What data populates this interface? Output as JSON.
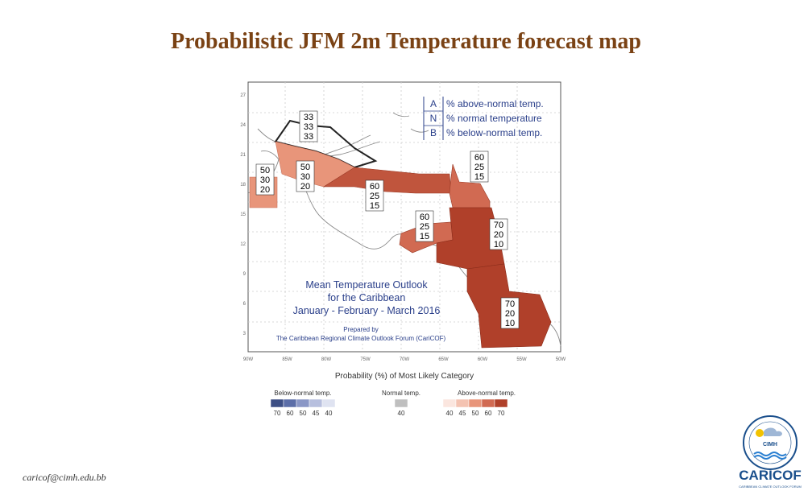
{
  "slide": {
    "title": "Probabilistic JFM 2m Temperature forecast map",
    "footer_email": "caricof@cimh.edu.bb"
  },
  "map": {
    "title_lines": [
      "Mean Temperature Outlook",
      "for the Caribbean",
      "January - February - March 2016"
    ],
    "prepared_lines": [
      "Prepared by",
      "The Caribbean Regional Climate Outlook Forum (CariCOF)"
    ],
    "lat_labels": [
      "27",
      "24",
      "21",
      "18",
      "15",
      "12",
      "9",
      "6",
      "3"
    ],
    "lon_labels": [
      "90W",
      "85W",
      "80W",
      "75W",
      "70W",
      "65W",
      "60W",
      "55W",
      "50W"
    ],
    "key": [
      {
        "letter": "A",
        "text": "% above-normal temp."
      },
      {
        "letter": "N",
        "text": "% normal temperature"
      },
      {
        "letter": "B",
        "text": "% below-normal temp."
      }
    ],
    "regions": [
      {
        "id": "bahamas",
        "values": [
          "33",
          "33",
          "33"
        ],
        "color": "none"
      },
      {
        "id": "belize",
        "values": [
          "50",
          "30",
          "20"
        ],
        "color": "#e8957a"
      },
      {
        "id": "cuba",
        "values": [
          "50",
          "30",
          "20"
        ],
        "color": "#e8957a"
      },
      {
        "id": "greater-antilles",
        "values": [
          "60",
          "25",
          "15"
        ],
        "color": "#d16a52"
      },
      {
        "id": "lesser-antilles",
        "values": [
          "60",
          "25",
          "15"
        ],
        "color": "#d16a52"
      },
      {
        "id": "abc-islands",
        "values": [
          "60",
          "25",
          "15"
        ],
        "color": "#d16a52"
      },
      {
        "id": "trinidad",
        "values": [
          "70",
          "20",
          "10"
        ],
        "color": "#b0402a"
      },
      {
        "id": "guianas",
        "values": [
          "70",
          "20",
          "10"
        ],
        "color": "#b0402a"
      }
    ]
  },
  "legend": {
    "title": "Probability (%) of Most Likely Category",
    "below": {
      "label": "Below-normal temp.",
      "ticks": [
        "70",
        "60",
        "50",
        "45",
        "40"
      ],
      "colors": [
        "#3d4f85",
        "#5c6ea8",
        "#8a97c6",
        "#b7bfde",
        "#dfe3f1"
      ]
    },
    "normal": {
      "label": "Normal temp.",
      "ticks": [
        "40"
      ],
      "colors": [
        "#bfbfbf"
      ]
    },
    "above": {
      "label": "Above-normal temp.",
      "ticks": [
        "40",
        "45",
        "50",
        "60",
        "70"
      ],
      "colors": [
        "#fbe6df",
        "#f4c3b2",
        "#e8957a",
        "#d16a52",
        "#b0402a"
      ]
    }
  },
  "logo": {
    "org": "CIMH",
    "brand": "CARICOF",
    "tagline": "CARIBBEAN CLIMATE OUTLOOK FORUM",
    "colors": {
      "brand": "#1a4f8c",
      "accent": "#f2c200",
      "wave": "#2a7fd1"
    }
  }
}
